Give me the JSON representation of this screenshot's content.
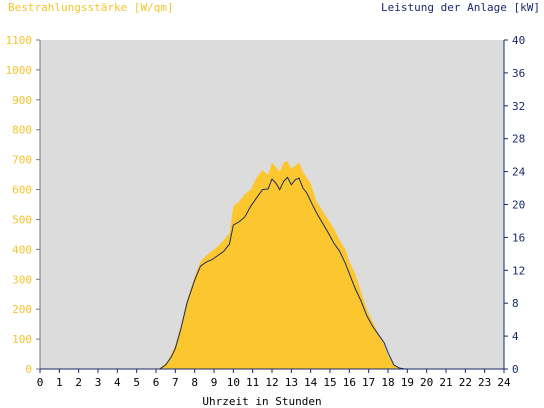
{
  "chart_data": {
    "type": "area",
    "title_left": "Bestrahlungsstärke [W/qm]",
    "title_right": "Leistung der Anlage [kW]",
    "xlabel": "Uhrzeit in Stunden",
    "x_ticks": [
      "0",
      "1",
      "2",
      "3",
      "4",
      "5",
      "6",
      "7",
      "8",
      "9",
      "10",
      "11",
      "12",
      "13",
      "14",
      "15",
      "16",
      "17",
      "18",
      "19",
      "20",
      "21",
      "22",
      "23",
      "24"
    ],
    "y_left_ticks": [
      "0",
      "100",
      "200",
      "300",
      "400",
      "500",
      "600",
      "700",
      "800",
      "900",
      "1000",
      "1100"
    ],
    "y_right_ticks": [
      "0",
      "4",
      "8",
      "12",
      "16",
      "20",
      "24",
      "28",
      "32",
      "36",
      "40"
    ],
    "xlim": [
      0,
      24
    ],
    "ylim_left": [
      0,
      1100
    ],
    "ylim_right": [
      0,
      40
    ],
    "colors": {
      "plot_background": "#dcdcdc",
      "irradiance_fill": "#fcc72e",
      "power_line": "#1a2a6c",
      "left_axis_text": "#f5c32c",
      "right_axis_text": "#1a2a6c"
    },
    "series": [
      {
        "type": "area",
        "axis": "left",
        "x": [
          0,
          6.0,
          6.3,
          6.6,
          7.0,
          7.3,
          7.6,
          8.0,
          8.3,
          8.6,
          8.9,
          9.2,
          9.5,
          9.8,
          10.0,
          10.3,
          10.6,
          10.9,
          11.2,
          11.5,
          11.8,
          12.0,
          12.2,
          12.4,
          12.6,
          12.8,
          13.0,
          13.2,
          13.4,
          13.6,
          13.8,
          14.0,
          14.3,
          14.6,
          14.9,
          15.2,
          15.5,
          15.8,
          16.0,
          16.3,
          16.6,
          16.9,
          17.2,
          17.5,
          17.8,
          18.0,
          18.3,
          18.6,
          18.9,
          19.0,
          24
        ],
        "values": [
          0,
          0,
          8,
          25,
          80,
          150,
          230,
          310,
          360,
          380,
          395,
          410,
          430,
          455,
          545,
          560,
          585,
          600,
          640,
          665,
          650,
          690,
          675,
          660,
          690,
          695,
          670,
          680,
          690,
          660,
          640,
          620,
          560,
          530,
          500,
          470,
          430,
          400,
          360,
          320,
          260,
          200,
          160,
          120,
          80,
          45,
          15,
          3,
          0,
          0,
          0
        ]
      },
      {
        "type": "line",
        "axis": "right",
        "x": [
          0,
          6.2,
          6.5,
          6.8,
          7.0,
          7.3,
          7.6,
          8.0,
          8.3,
          8.6,
          8.9,
          9.2,
          9.5,
          9.8,
          10.0,
          10.3,
          10.6,
          10.9,
          11.2,
          11.5,
          11.8,
          12.0,
          12.2,
          12.4,
          12.6,
          12.8,
          13.0,
          13.2,
          13.4,
          13.6,
          13.8,
          14.0,
          14.3,
          14.6,
          14.9,
          15.2,
          15.5,
          15.8,
          16.0,
          16.3,
          16.6,
          16.9,
          17.2,
          17.5,
          17.8,
          18.0,
          18.3,
          18.6,
          18.9,
          19.0,
          24
        ],
        "values": [
          0,
          0,
          0.5,
          1.5,
          2.5,
          5.0,
          8.0,
          10.8,
          12.5,
          13.0,
          13.3,
          13.8,
          14.3,
          15.2,
          17.5,
          17.9,
          18.5,
          19.8,
          20.8,
          21.8,
          21.9,
          23.1,
          22.6,
          21.8,
          22.8,
          23.3,
          22.4,
          23.0,
          23.2,
          22.0,
          21.4,
          20.4,
          19.0,
          17.8,
          16.6,
          15.3,
          14.3,
          12.8,
          11.6,
          9.8,
          8.3,
          6.5,
          5.2,
          4.2,
          3.2,
          2.0,
          0.5,
          0.1,
          0,
          0,
          0
        ]
      }
    ]
  }
}
